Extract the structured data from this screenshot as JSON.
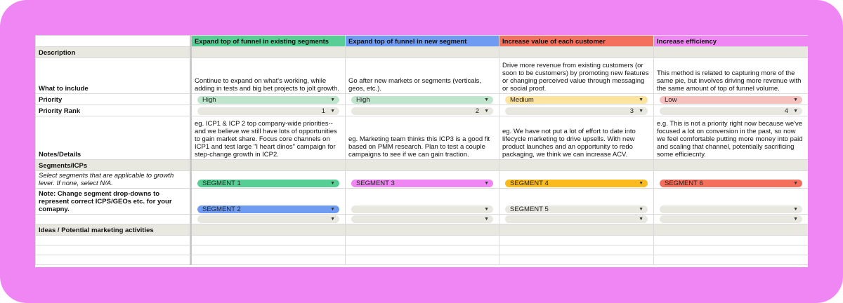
{
  "colors": {
    "frame": "#ef86f3",
    "col1": "#57cf94",
    "col2": "#6f9cf2",
    "col3": "#f56f5d",
    "col4": "#ef86f3",
    "section": "#e8e8e1",
    "pill_gray": "#e8e8e1"
  },
  "columns": [
    {
      "header": "Expand top of funnel in existing segments",
      "color": "#57cf94"
    },
    {
      "header": "Expand top of funnel in new segment",
      "color": "#6f9cf2"
    },
    {
      "header": "Increase value of each customer",
      "color": "#f56f5d"
    },
    {
      "header": "Increase efficiency",
      "color": "#ef86f3"
    }
  ],
  "rows": {
    "description": "Description",
    "what": {
      "label": "What to include",
      "cells": [
        "Continue to expand on what's working, while adding in tests and big bet projects to jolt growth.",
        "Go after new markets or segments (verticals, geos, etc.).",
        "Drive more revenue from existing customers (or soon to be customers) by promoting new features or changing perceived value through messaging or social proof.",
        "This method is related to capturing more of the same pie, but involves driving more revenue with the same amount of top of funnel volume."
      ]
    },
    "priority": {
      "label": "Priority",
      "values": [
        "High",
        "High",
        "Medium",
        "Low"
      ],
      "colors": [
        "#bfe6cc",
        "#bfe6cc",
        "#fde3a0",
        "#f6c2be"
      ]
    },
    "rank": {
      "label": "Priority Rank",
      "values": [
        "1",
        "2",
        "3",
        "4"
      ]
    },
    "notes": {
      "label": "Notes/Details",
      "cells": [
        "eg. ICP1 & ICP 2 top company-wide priorities--and we believe we still have lots of opportunities to gain market share. Focus core channels on ICP1 and test large \"I heart dinos\" campaign for step-change growth in ICP2.",
        "eg. Marketing team thinks this ICP3 is a good fit based on PMM research. Plan to test a couple campaigns to see if we can gain traction.",
        "eg. We have not put a lot of effort to date into lifecycle marketing to drive upsells. With new product launches and an opportunity to redo packaging, we think we can increase ACV.",
        "e.g. This is not a priority right now because we've focused a lot on conversion in the past, so now we feel comfortable putting more money into paid and scaling that channel, potentially sacrificing some efficiecnty."
      ]
    },
    "segments_header": "Segments/ICPs",
    "seg_help": "Select segments that are applicable to growth lever. If none, select N/A.",
    "seg_note": "Note: Change segment drop-downs to represent correct ICPS/GEOs etc. for your comapny.",
    "seg_row1": {
      "values": [
        "SEGMENT 1",
        "SEGMENT 3",
        "SEGMENT 4",
        "SEGMENT 6"
      ],
      "colors": [
        "#57cf94",
        "#ef86f3",
        "#fbbb1f",
        "#f56f5d"
      ]
    },
    "seg_row2": {
      "values": [
        "SEGMENT 2",
        "",
        "SEGMENT 5",
        ""
      ],
      "colors": [
        "#6f9cf2",
        "#e8e8e1",
        "#e8e8e1",
        "#e8e8e1"
      ]
    },
    "seg_row3": {
      "values": [
        "",
        "",
        "",
        ""
      ],
      "colors": [
        "#e8e8e1",
        "#e8e8e1",
        "#e8e8e1",
        "#e8e8e1"
      ]
    },
    "ideas": "Ideas / Potential marketing activities"
  },
  "icons": {
    "dropdown": "chevron-down-icon"
  }
}
